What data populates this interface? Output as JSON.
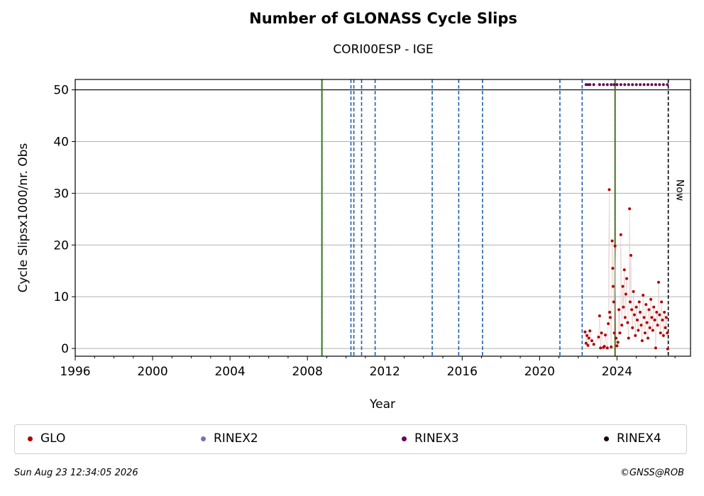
{
  "chart_data": {
    "type": "scatter",
    "title": "Number of GLONASS Cycle Slips",
    "subtitle": "CORI00ESP - IGE",
    "xlabel": "Year",
    "ylabel": "Cycle Slipsx1000/nr. Obs",
    "xlim": [
      1996,
      2027.8
    ],
    "ylim": [
      -1.5,
      52
    ],
    "x_major_ticks": [
      1996,
      2000,
      2004,
      2008,
      2012,
      2016,
      2020,
      2024
    ],
    "x_tick_labels": [
      "1996",
      "2000",
      "2004",
      "2008",
      "2012",
      "2016",
      "2020",
      "2024"
    ],
    "y_ticks": [
      0,
      10,
      20,
      30,
      40,
      50
    ],
    "y_tick_labels": [
      "0",
      "10",
      "20",
      "30",
      "40",
      "50"
    ],
    "grid": "horizontal",
    "hline": 50,
    "events": {
      "equipment_changes": [
        2008.75,
        2023.9
      ],
      "dashed_blue": [
        2010.25,
        2010.4,
        2010.8,
        2011.5,
        2014.45,
        2015.82,
        2017.05,
        2021.05,
        2022.2
      ]
    },
    "now": {
      "x": 2026.65,
      "label": "Now"
    },
    "series": [
      {
        "name": "GLO",
        "color": "#b00000",
        "points": [
          [
            2022.35,
            3.2
          ],
          [
            2022.4,
            1.0
          ],
          [
            2022.45,
            2.5
          ],
          [
            2022.5,
            0.6
          ],
          [
            2022.55,
            2.0
          ],
          [
            2022.6,
            3.4
          ],
          [
            2022.7,
            1.5
          ],
          [
            2022.8,
            0.8
          ],
          [
            2023.05,
            2.2
          ],
          [
            2023.1,
            6.3
          ],
          [
            2023.15,
            0.1
          ],
          [
            2023.2,
            3.0
          ],
          [
            2023.3,
            0.2
          ],
          [
            2023.35,
            0.4
          ],
          [
            2023.4,
            2.6
          ],
          [
            2023.5,
            0.1
          ],
          [
            2023.55,
            4.8
          ],
          [
            2023.6,
            30.7
          ],
          [
            2023.62,
            7.0
          ],
          [
            2023.65,
            6.0
          ],
          [
            2023.7,
            0.3
          ],
          [
            2023.75,
            20.8
          ],
          [
            2023.78,
            15.5
          ],
          [
            2023.8,
            12.0
          ],
          [
            2023.83,
            9.0
          ],
          [
            2023.86,
            3.0
          ],
          [
            2023.9,
            19.8
          ],
          [
            2023.95,
            2.0
          ],
          [
            2024.0,
            0.5
          ],
          [
            2024.05,
            1.2
          ],
          [
            2024.1,
            7.5
          ],
          [
            2024.15,
            3.0
          ],
          [
            2024.2,
            22.0
          ],
          [
            2024.25,
            4.5
          ],
          [
            2024.3,
            12.0
          ],
          [
            2024.33,
            8.0
          ],
          [
            2024.38,
            15.2
          ],
          [
            2024.42,
            6.0
          ],
          [
            2024.46,
            10.5
          ],
          [
            2024.5,
            13.5
          ],
          [
            2024.55,
            5.0
          ],
          [
            2024.6,
            2.0
          ],
          [
            2024.65,
            27.0
          ],
          [
            2024.68,
            9.0
          ],
          [
            2024.72,
            18.0
          ],
          [
            2024.76,
            7.5
          ],
          [
            2024.8,
            4.0
          ],
          [
            2024.85,
            11.0
          ],
          [
            2024.9,
            6.5
          ],
          [
            2024.95,
            2.5
          ],
          [
            2025.0,
            8.0
          ],
          [
            2025.05,
            5.5
          ],
          [
            2025.1,
            3.5
          ],
          [
            2025.15,
            9.0
          ],
          [
            2025.2,
            7.0
          ],
          [
            2025.25,
            4.5
          ],
          [
            2025.3,
            1.5
          ],
          [
            2025.35,
            10.3
          ],
          [
            2025.4,
            6.0
          ],
          [
            2025.45,
            3.0
          ],
          [
            2025.5,
            8.5
          ],
          [
            2025.55,
            5.0
          ],
          [
            2025.6,
            2.0
          ],
          [
            2025.65,
            7.5
          ],
          [
            2025.7,
            4.0
          ],
          [
            2025.75,
            9.5
          ],
          [
            2025.8,
            6.0
          ],
          [
            2025.85,
            3.5
          ],
          [
            2025.9,
            8.0
          ],
          [
            2025.95,
            5.5
          ],
          [
            2026.0,
            0.1
          ],
          [
            2026.05,
            7.0
          ],
          [
            2026.1,
            4.5
          ],
          [
            2026.15,
            12.8
          ],
          [
            2026.2,
            6.5
          ],
          [
            2026.25,
            3.0
          ],
          [
            2026.3,
            9.0
          ],
          [
            2026.35,
            5.5
          ],
          [
            2026.4,
            2.5
          ],
          [
            2026.45,
            7.0
          ],
          [
            2026.5,
            4.0
          ],
          [
            2026.55,
            6.0
          ],
          [
            2026.6,
            3.0
          ],
          [
            2026.62,
            -0.1
          ]
        ]
      },
      {
        "name": "RINEX2",
        "color": "#7a70b8",
        "points": []
      },
      {
        "name": "RINEX3",
        "color": "#6a005f",
        "points": [
          [
            2022.4,
            51.0
          ],
          [
            2022.5,
            51.0
          ],
          [
            2022.6,
            51.0
          ],
          [
            2022.8,
            51.0
          ],
          [
            2023.1,
            51.0
          ],
          [
            2023.3,
            51.0
          ],
          [
            2023.5,
            51.0
          ],
          [
            2023.7,
            51.0
          ],
          [
            2023.85,
            51.0
          ],
          [
            2024.0,
            51.0
          ],
          [
            2024.2,
            51.0
          ],
          [
            2024.4,
            51.0
          ],
          [
            2024.6,
            51.0
          ],
          [
            2024.8,
            51.0
          ],
          [
            2025.0,
            51.0
          ],
          [
            2025.2,
            51.0
          ],
          [
            2025.4,
            51.0
          ],
          [
            2025.6,
            51.0
          ],
          [
            2025.8,
            51.0
          ],
          [
            2026.0,
            51.0
          ],
          [
            2026.2,
            51.0
          ],
          [
            2026.4,
            51.0
          ],
          [
            2026.6,
            51.0
          ]
        ]
      },
      {
        "name": "RINEX4",
        "color": "#1a0010",
        "points": []
      }
    ]
  },
  "legend": [
    {
      "label": "GLO",
      "color": "#b00000"
    },
    {
      "label": "RINEX2",
      "color": "#7a70b8"
    },
    {
      "label": "RINEX3",
      "color": "#6a005f"
    },
    {
      "label": "RINEX4",
      "color": "#1a0010"
    }
  ],
  "footer": {
    "timestamp": "Sun Aug 23 12:34:05 2026",
    "credit": "©GNSS@ROB"
  }
}
